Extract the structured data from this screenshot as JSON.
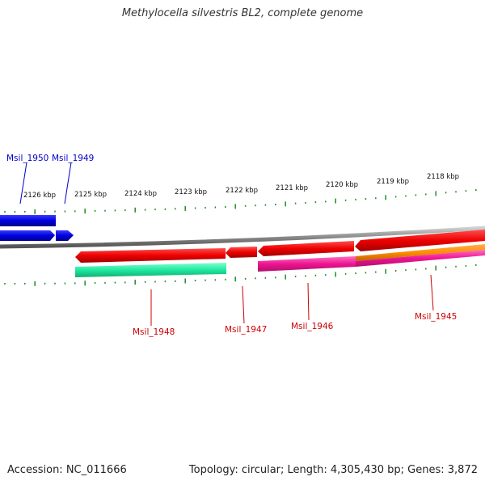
{
  "title": "Methylocella silvestris BL2, complete genome",
  "footer": {
    "accession": "Accession: NC_011666",
    "summary": "Topology: circular; Length: 4,305,430 bp; Genes: 3,872"
  },
  "tick_labels": [
    "2126 kbp",
    "2125 kbp",
    "2124 kbp",
    "2123 kbp",
    "2122 kbp",
    "2121 kbp",
    "2120 kbp",
    "2119 kbp",
    "2118 kbp"
  ],
  "genes": {
    "msil_1950": "Msil_1950",
    "msil_1949": "Msil_1949",
    "msil_1948": "Msil_1948",
    "msil_1947": "Msil_1947",
    "msil_1946": "Msil_1946",
    "msil_1945": "Msil_1945"
  },
  "colors": {
    "forward_gene": "#0000ee",
    "reverse_gene": "#ee0000",
    "cds_green": "#20e8a0",
    "cds_pink": "#ee1493",
    "cds_orange": "#ff8c00",
    "ticks": "#228b22",
    "backbone": "#888888"
  }
}
